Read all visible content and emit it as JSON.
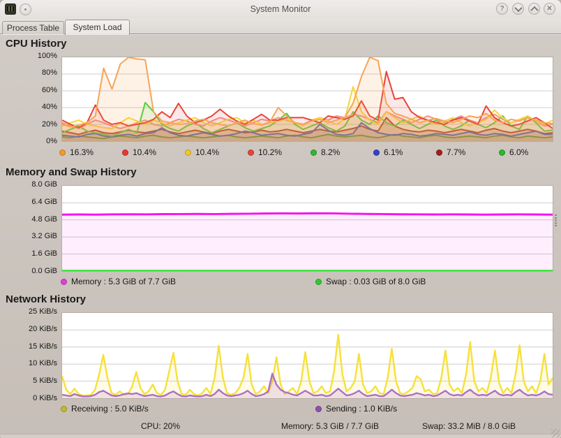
{
  "window": {
    "title": "System Monitor",
    "tabs": [
      {
        "label": "Process Table",
        "active": false
      },
      {
        "label": "System Load",
        "active": true
      }
    ],
    "titlebar_buttons": {
      "help": "?",
      "close": "✕"
    }
  },
  "statusbar": {
    "cpu": "CPU: 20%",
    "memory": "Memory: 5.3 GiB / 7.7 GiB",
    "swap": "Swap: 33.2 MiB / 8.0 GiB"
  },
  "chart_data": [
    {
      "id": "cpu",
      "type": "area",
      "title": "CPU History",
      "ylim": [
        0,
        100
      ],
      "grid": true,
      "legend_position": "bottom",
      "y_ticks": [
        {
          "v": 100,
          "label": "100%"
        },
        {
          "v": 80,
          "label": "80%"
        },
        {
          "v": 60,
          "label": "60%"
        },
        {
          "v": 40,
          "label": "40%"
        },
        {
          "v": 20,
          "label": "20%"
        },
        {
          "v": 0,
          "label": "0%"
        }
      ],
      "draw_order": "reversed",
      "series": [
        {
          "name": "cpu1",
          "legend": "16.3%",
          "color": "#f6a457",
          "dot": "#f59a28",
          "width": 2,
          "fill_opacity": 0.14,
          "values": [
            20,
            17,
            19,
            22,
            30,
            87,
            62,
            92,
            100,
            98,
            97,
            35,
            24,
            22,
            20,
            21,
            24,
            26,
            22,
            20,
            18,
            22,
            25,
            21,
            19,
            23,
            40,
            30,
            22,
            20,
            24,
            26,
            22,
            25,
            28,
            45,
            77,
            100,
            96,
            45,
            33,
            30,
            26,
            22,
            25,
            27,
            24,
            22,
            26,
            30,
            28,
            33,
            25,
            22,
            26,
            24,
            28,
            25,
            22,
            21
          ]
        },
        {
          "name": "cpu2",
          "legend": "10.4%",
          "color": "#e8433a",
          "dot": "#e63732",
          "width": 2,
          "fill_opacity": 0.12,
          "values": [
            25,
            20,
            16,
            22,
            43,
            25,
            20,
            22,
            18,
            20,
            22,
            26,
            35,
            28,
            45,
            30,
            22,
            25,
            30,
            38,
            30,
            24,
            20,
            26,
            32,
            25,
            25,
            28,
            28,
            28,
            25,
            22,
            30,
            28,
            26,
            30,
            48,
            30,
            25,
            83,
            50,
            52,
            35,
            28,
            25,
            22,
            20,
            25,
            28,
            24,
            20,
            42,
            28,
            22,
            18,
            20,
            24,
            28,
            22,
            15
          ]
        },
        {
          "name": "cpu3",
          "legend": "10.4%",
          "color": "#f3d83d",
          "dot": "#f0c929",
          "width": 2,
          "fill_opacity": 0.12,
          "values": [
            18,
            22,
            25,
            20,
            18,
            16,
            15,
            22,
            28,
            24,
            20,
            25,
            22,
            18,
            22,
            25,
            28,
            22,
            18,
            22,
            26,
            28,
            22,
            25,
            20,
            22,
            24,
            26,
            22,
            18,
            25,
            28,
            24,
            20,
            26,
            65,
            35,
            25,
            20,
            35,
            28,
            22,
            26,
            30,
            24,
            20,
            24,
            28,
            22,
            18,
            22,
            26,
            37,
            28,
            22,
            26,
            30,
            24,
            20,
            25
          ]
        },
        {
          "name": "cpu4",
          "legend": "10.2%",
          "color": "#f0938b",
          "dot": "#e8443c",
          "width": 2,
          "fill_opacity": 0.12,
          "values": [
            22,
            18,
            15,
            20,
            25,
            22,
            18,
            15,
            18,
            22,
            25,
            20,
            18,
            22,
            26,
            24,
            20,
            18,
            24,
            28,
            25,
            22,
            18,
            22,
            26,
            24,
            28,
            25,
            22,
            20,
            25,
            28,
            25,
            30,
            28,
            32,
            30,
            26,
            22,
            35,
            30,
            26,
            22,
            26,
            30,
            26,
            22,
            26,
            30,
            25,
            22,
            28,
            32,
            26,
            22,
            25,
            28,
            24,
            18,
            20
          ]
        },
        {
          "name": "cpu5",
          "legend": "8.2%",
          "color": "#3bd43b",
          "dot": "#2eb834",
          "width": 2,
          "fill_opacity": 0.1,
          "values": [
            10,
            14,
            18,
            12,
            10,
            8,
            6,
            10,
            14,
            10,
            46,
            35,
            20,
            15,
            12,
            18,
            22,
            15,
            10,
            14,
            18,
            22,
            16,
            12,
            15,
            18,
            25,
            33,
            20,
            14,
            18,
            22,
            16,
            12,
            18,
            35,
            25,
            20,
            30,
            22,
            18,
            25,
            20,
            15,
            20,
            25,
            18,
            14,
            18,
            25,
            20,
            16,
            22,
            30,
            18,
            14,
            30,
            22,
            12,
            13
          ]
        },
        {
          "name": "cpu6",
          "legend": "6.1%",
          "color": "#3050d8",
          "dot": "#3342c8",
          "width": 2,
          "fill_opacity": 0.1,
          "values": [
            7,
            6,
            5,
            8,
            9,
            6,
            5,
            7,
            8,
            6,
            9,
            10,
            16,
            10,
            7,
            6,
            8,
            10,
            8,
            6,
            7,
            9,
            12,
            10,
            7,
            8,
            9,
            7,
            6,
            8,
            10,
            20,
            13,
            8,
            7,
            9,
            22,
            15,
            10,
            8,
            7,
            9,
            8,
            6,
            7,
            9,
            8,
            7,
            9,
            11,
            8,
            7,
            9,
            8,
            6,
            8,
            10,
            12,
            8,
            8
          ]
        },
        {
          "name": "cpu7",
          "legend": "7.7%",
          "color": "#a82c22",
          "dot": "#a02020",
          "width": 2,
          "fill_opacity": 0.25,
          "values": [
            12,
            10,
            8,
            11,
            13,
            10,
            9,
            11,
            13,
            11,
            10,
            12,
            14,
            11,
            9,
            11,
            13,
            11,
            9,
            12,
            14,
            12,
            10,
            11,
            13,
            11,
            12,
            14,
            12,
            10,
            12,
            14,
            12,
            11,
            13,
            15,
            18,
            14,
            12,
            28,
            18,
            14,
            12,
            11,
            13,
            12,
            10,
            12,
            14,
            12,
            10,
            13,
            15,
            12,
            10,
            12,
            14,
            12,
            9,
            10
          ]
        },
        {
          "name": "cpu8",
          "legend": "6.0%",
          "color": "#2db92d",
          "dot": "#2db92d",
          "width": 2,
          "fill_opacity": 0.1,
          "values": [
            5,
            4,
            6,
            5,
            4,
            3,
            5,
            6,
            5,
            4,
            6,
            7,
            5,
            4,
            5,
            6,
            5,
            4,
            5,
            6,
            7,
            5,
            4,
            5,
            6,
            5,
            4,
            6,
            7,
            5,
            4,
            6,
            8,
            6,
            5,
            6,
            7,
            5,
            4,
            6,
            8,
            6,
            5,
            4,
            6,
            7,
            5,
            4,
            5,
            6,
            5,
            4,
            6,
            7,
            5,
            4,
            6,
            5,
            4,
            5
          ]
        }
      ]
    },
    {
      "id": "mem",
      "type": "area",
      "title": "Memory and Swap History",
      "ylim": [
        0,
        8
      ],
      "grid": true,
      "legend_position": "bottom",
      "y_ticks": [
        {
          "v": 8.0,
          "label": "8.0 GiB"
        },
        {
          "v": 6.4,
          "label": "6.4 GiB"
        },
        {
          "v": 4.8,
          "label": "4.8 GiB"
        },
        {
          "v": 3.2,
          "label": "3.2 GiB"
        },
        {
          "v": 1.6,
          "label": "1.6 GiB"
        },
        {
          "v": 0.0,
          "label": "0.0 GiB"
        }
      ],
      "draw_order": "as-listed",
      "series": [
        {
          "name": "memory",
          "legend": "Memory : 5.3 GiB of 7.7 GiB",
          "color": "#f712f1",
          "dot": "#e040d8",
          "width": 3,
          "fill_opacity": 0.07,
          "values": [
            5.3,
            5.31,
            5.3,
            5.32,
            5.33,
            5.32,
            5.34,
            5.35,
            5.36,
            5.35,
            5.37,
            5.38,
            5.4,
            5.41,
            5.4,
            5.42,
            5.41,
            5.38,
            5.36,
            5.35,
            5.33,
            5.32,
            5.31,
            5.32,
            5.31,
            5.3,
            5.31,
            5.32,
            5.31,
            5.3
          ]
        },
        {
          "name": "swap",
          "legend": "Swap : 0.03 GiB of 8.0 GiB",
          "color": "#1ee51e",
          "dot": "#30c830",
          "width": 2.2,
          "fill_opacity": 0,
          "values": [
            0.03,
            0.03,
            0.03,
            0.03,
            0.03,
            0.03,
            0.03,
            0.03,
            0.03,
            0.03,
            0.03,
            0.03,
            0.03,
            0.03,
            0.03,
            0.03,
            0.03,
            0.03,
            0.03,
            0.03,
            0.03,
            0.03,
            0.03,
            0.03,
            0.03,
            0.03,
            0.03,
            0.03,
            0.03,
            0.03
          ]
        }
      ]
    },
    {
      "id": "net",
      "type": "area",
      "title": "Network History",
      "ylim": [
        0,
        25
      ],
      "grid": true,
      "legend_position": "bottom",
      "y_ticks": [
        {
          "v": 25,
          "label": "25 KiB/s"
        },
        {
          "v": 20,
          "label": "20 KiB/s"
        },
        {
          "v": 15,
          "label": "15 KiB/s"
        },
        {
          "v": 10,
          "label": "10 KiB/s"
        },
        {
          "v": 5,
          "label": "5 KiB/s"
        },
        {
          "v": 0,
          "label": "0 KiB/s"
        }
      ],
      "draw_order": "as-listed",
      "series": [
        {
          "name": "receiving",
          "legend": "Receiving : 5.0 KiB/s",
          "color": "#f7e03a",
          "dot": "#c3b82f",
          "width": 2.4,
          "fill_opacity": 0.12,
          "values": [
            6.5,
            2.5,
            1.2,
            2.8,
            1.2,
            0.8,
            0.8,
            1.0,
            2.5,
            7,
            12.7,
            6,
            1.5,
            1.0,
            2.0,
            1.0,
            1.2,
            3.5,
            7.7,
            3,
            1.2,
            2.0,
            4.0,
            1.5,
            1.0,
            2.5,
            8,
            13.3,
            5,
            1.2,
            1.0,
            2.5,
            1.2,
            0.8,
            1.5,
            3.0,
            1.2,
            6,
            15.4,
            6,
            1.5,
            1.0,
            1.5,
            3.0,
            6,
            13.0,
            4,
            1.2,
            2.0,
            3.5,
            1.5,
            5,
            12.0,
            4,
            1.2,
            2.0,
            3.0,
            1.2,
            5,
            13.5,
            5,
            1.5,
            2.0,
            3.5,
            1.5,
            2.0,
            8,
            18.6,
            7,
            2.0,
            3.0,
            5,
            13.0,
            4,
            1.5,
            2.0,
            3.5,
            1.5,
            1.2,
            6,
            14.5,
            5,
            1.5,
            1.2,
            2.0,
            3.0,
            6.5,
            5.5,
            2.0,
            2.5,
            1.2,
            1.5,
            6,
            14.0,
            4,
            2.0,
            3.0,
            1.5,
            7,
            16.5,
            5,
            2.0,
            3.0,
            1.5,
            6,
            14.0,
            4.5,
            1.5,
            3.0,
            1.5,
            7,
            15.5,
            5,
            2.0,
            3.5,
            1.5,
            5,
            13.0,
            4,
            6.0
          ]
        },
        {
          "name": "sending",
          "legend": "Sending : 1.0 KiB/s",
          "color": "#ae6fc2",
          "dot": "#9050b0",
          "width": 2.4,
          "fill_opacity": 0.18,
          "values": [
            1.0,
            0.8,
            0.6,
            1.2,
            0.8,
            0.5,
            0.5,
            0.6,
            1.0,
            1.8,
            2.2,
            1.5,
            0.8,
            0.6,
            0.8,
            1.2,
            1.4,
            1.2,
            1.5,
            1.0,
            0.6,
            0.8,
            1.0,
            0.6,
            0.5,
            0.8,
            1.5,
            2.0,
            1.2,
            0.6,
            0.5,
            0.8,
            0.6,
            0.5,
            0.6,
            1.0,
            0.6,
            1.2,
            2.5,
            1.5,
            0.8,
            0.6,
            0.8,
            1.0,
            1.5,
            2.2,
            1.2,
            0.6,
            0.8,
            1.2,
            2.0,
            7.2,
            4.0,
            2.5,
            1.8,
            1.5,
            1.0,
            0.8,
            1.5,
            2.2,
            1.5,
            0.8,
            0.8,
            1.0,
            0.6,
            0.8,
            1.8,
            2.8,
            1.8,
            0.8,
            1.0,
            1.5,
            2.2,
            1.2,
            0.6,
            0.8,
            1.0,
            0.6,
            0.6,
            1.5,
            2.5,
            1.5,
            0.8,
            0.6,
            0.8,
            1.0,
            1.5,
            1.2,
            0.8,
            1.0,
            0.6,
            0.8,
            1.5,
            2.2,
            1.2,
            0.8,
            1.0,
            0.8,
            1.8,
            2.5,
            1.5,
            0.8,
            1.0,
            0.8,
            1.5,
            2.2,
            1.2,
            0.8,
            1.0,
            0.8,
            1.8,
            2.5,
            1.5,
            0.8,
            1.0,
            0.8,
            1.2,
            2.0,
            1.2,
            1.0
          ]
        }
      ]
    }
  ]
}
